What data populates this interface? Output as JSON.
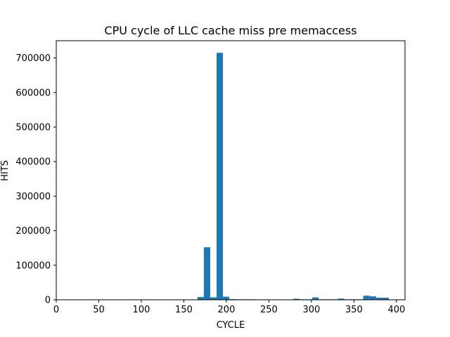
{
  "chart_data": {
    "type": "bar",
    "title": "CPU cycle of LLC cache miss pre memaccess",
    "xlabel": "CYCLE",
    "ylabel": "HITS",
    "xlim": [
      0,
      410
    ],
    "ylim": [
      0,
      750000
    ],
    "bin_width": 7.5,
    "x_ticks": [
      0,
      50,
      100,
      150,
      200,
      250,
      300,
      350,
      400
    ],
    "y_ticks": [
      0,
      100000,
      200000,
      300000,
      400000,
      500000,
      600000,
      700000
    ],
    "bars": [
      {
        "x": 166,
        "value": 8000
      },
      {
        "x": 173.5,
        "value": 152000
      },
      {
        "x": 181,
        "value": 7000
      },
      {
        "x": 188.5,
        "value": 715000
      },
      {
        "x": 196,
        "value": 9000
      },
      {
        "x": 203.5,
        "value": 2000
      },
      {
        "x": 211,
        "value": 1500
      },
      {
        "x": 218.5,
        "value": 1500
      },
      {
        "x": 226,
        "value": 1500
      },
      {
        "x": 233.5,
        "value": 1000
      },
      {
        "x": 241,
        "value": 1000
      },
      {
        "x": 248.5,
        "value": 1000
      },
      {
        "x": 256,
        "value": 1000
      },
      {
        "x": 263.5,
        "value": 1000
      },
      {
        "x": 271,
        "value": 1000
      },
      {
        "x": 278.5,
        "value": 3000
      },
      {
        "x": 286,
        "value": 1500
      },
      {
        "x": 293.5,
        "value": 1500
      },
      {
        "x": 301,
        "value": 7000
      },
      {
        "x": 308.5,
        "value": 1500
      },
      {
        "x": 316,
        "value": 1500
      },
      {
        "x": 323.5,
        "value": 1500
      },
      {
        "x": 331,
        "value": 3500
      },
      {
        "x": 338.5,
        "value": 1500
      },
      {
        "x": 346,
        "value": 1500
      },
      {
        "x": 353.5,
        "value": 1500
      },
      {
        "x": 361,
        "value": 12000
      },
      {
        "x": 368.5,
        "value": 10000
      },
      {
        "x": 376,
        "value": 6000
      },
      {
        "x": 383.5,
        "value": 6000
      }
    ],
    "bar_color": "#1f77b4",
    "grid": false,
    "legend": false
  }
}
